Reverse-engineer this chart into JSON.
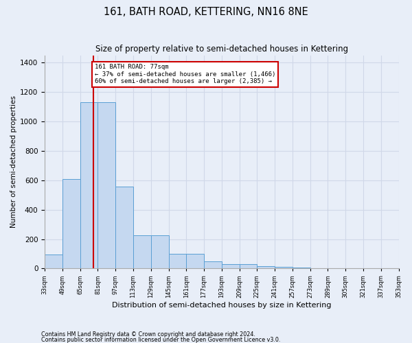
{
  "title": "161, BATH ROAD, KETTERING, NN16 8NE",
  "subtitle": "Size of property relative to semi-detached houses in Kettering",
  "xlabel": "Distribution of semi-detached houses by size in Kettering",
  "ylabel": "Number of semi-detached properties",
  "footnote1": "Contains HM Land Registry data © Crown copyright and database right 2024.",
  "footnote2": "Contains public sector information licensed under the Open Government Licence v3.0.",
  "property_label": "161 BATH ROAD: 77sqm",
  "pct_smaller": 37,
  "pct_larger": 60,
  "count_smaller": 1466,
  "count_larger": 2385,
  "bin_starts": [
    33,
    49,
    65,
    81,
    97,
    113,
    129,
    145,
    161,
    177,
    193,
    209,
    225,
    241,
    257,
    273,
    289,
    305,
    321,
    337
  ],
  "bin_width": 16,
  "bar_heights": [
    95,
    610,
    1130,
    1130,
    555,
    225,
    225,
    100,
    100,
    47,
    30,
    30,
    15,
    10,
    5,
    0,
    0,
    0,
    0,
    0
  ],
  "bar_color": "#c5d8f0",
  "bar_edge_color": "#5a9fd4",
  "red_line_x": 77,
  "annotation_box_color": "#cc0000",
  "ylim": [
    0,
    1450
  ],
  "yticks": [
    0,
    200,
    400,
    600,
    800,
    1000,
    1200,
    1400
  ],
  "grid_color": "#d0d8e8",
  "background_color": "#e8eef8",
  "axes_background": "#e8eef8",
  "fig_width": 6.0,
  "fig_height": 5.0,
  "dpi": 100
}
